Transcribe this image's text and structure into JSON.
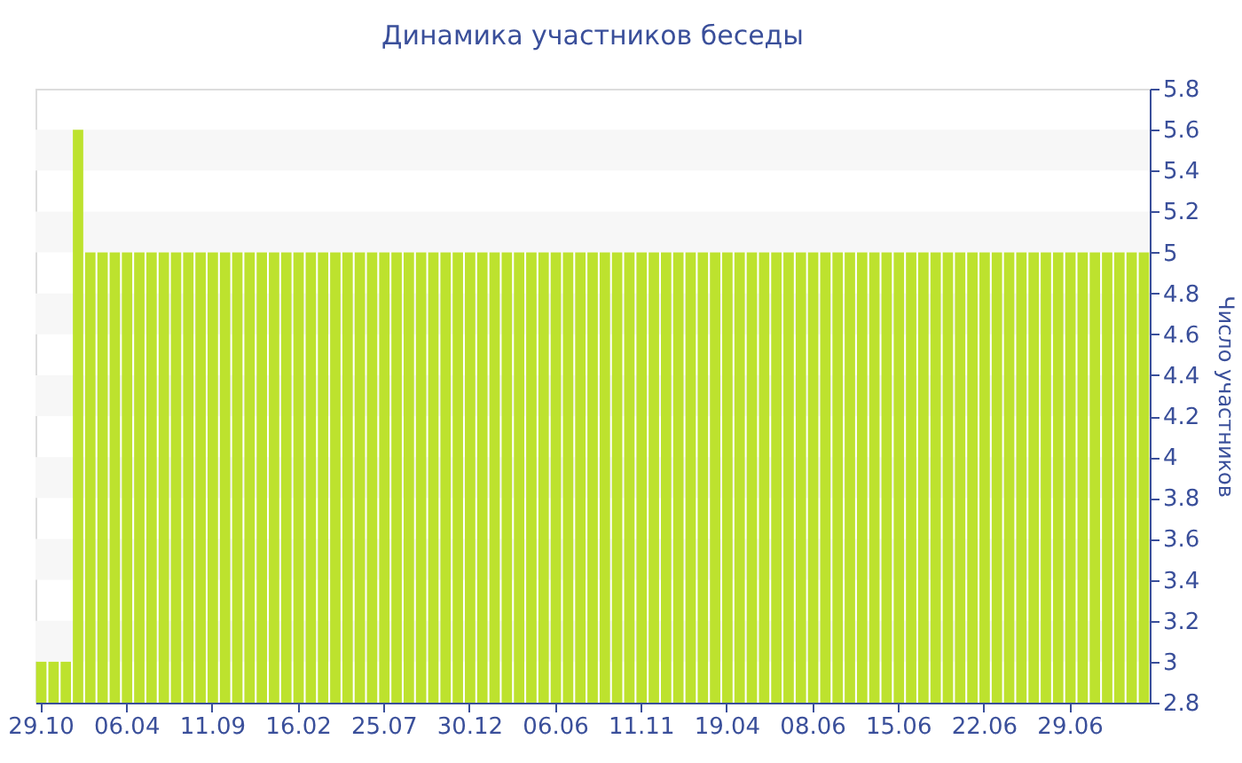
{
  "chart_data": {
    "type": "bar",
    "title": "Динамика участников беседы",
    "ylabel": "Число участников",
    "categories": [
      "29.10",
      null,
      null,
      null,
      null,
      null,
      null,
      "06.04",
      null,
      null,
      null,
      null,
      null,
      null,
      "11.09",
      null,
      null,
      null,
      null,
      null,
      null,
      "16.02",
      null,
      null,
      null,
      null,
      null,
      null,
      "25.07",
      null,
      null,
      null,
      null,
      null,
      null,
      "30.12",
      null,
      null,
      null,
      null,
      null,
      null,
      "06.06",
      null,
      null,
      null,
      null,
      null,
      null,
      "11.11",
      null,
      null,
      null,
      null,
      null,
      null,
      "19.04",
      null,
      null,
      null,
      null,
      null,
      null,
      "08.06",
      null,
      null,
      null,
      null,
      null,
      null,
      "15.06",
      null,
      null,
      null,
      null,
      null,
      null,
      "22.06",
      null,
      null,
      null,
      null,
      null,
      null,
      "29.06",
      null,
      null,
      null,
      null,
      null,
      null
    ],
    "values": [
      3,
      3,
      3,
      5.6,
      5,
      5,
      5,
      5,
      5,
      5,
      5,
      5,
      5,
      5,
      5,
      5,
      5,
      5,
      5,
      5,
      5,
      5,
      5,
      5,
      5,
      5,
      5,
      5,
      5,
      5,
      5,
      5,
      5,
      5,
      5,
      5,
      5,
      5,
      5,
      5,
      5,
      5,
      5,
      5,
      5,
      5,
      5,
      5,
      5,
      5,
      5,
      5,
      5,
      5,
      5,
      5,
      5,
      5,
      5,
      5,
      5,
      5,
      5,
      5,
      5,
      5,
      5,
      5,
      5,
      5,
      5,
      5,
      5,
      5,
      5,
      5,
      5,
      5,
      5,
      5,
      5,
      5,
      5,
      5,
      5,
      5,
      5,
      5,
      5,
      5,
      5
    ],
    "color": "#bde22e",
    "ylim": [
      2.8,
      5.8
    ],
    "yticks": [
      2.8,
      3,
      3.2,
      3.4,
      3.6,
      3.8,
      4,
      4.2,
      4.4,
      4.6,
      4.8,
      5,
      5.2,
      5.4,
      5.6,
      5.8
    ],
    "bands": [
      {
        "axis": "y",
        "from": 3,
        "to": 3.2,
        "color": "#f7f7f7"
      },
      {
        "axis": "y",
        "from": 3.4,
        "to": 3.6,
        "color": "#f7f7f7"
      },
      {
        "axis": "y",
        "from": 3.8,
        "to": 4,
        "color": "#f7f7f7"
      },
      {
        "axis": "y",
        "from": 4.2,
        "to": 4.4,
        "color": "#f7f7f7"
      },
      {
        "axis": "y",
        "from": 4.6,
        "to": 4.8,
        "color": "#f7f7f7"
      },
      {
        "axis": "y",
        "from": 5,
        "to": 5.2,
        "color": "#f7f7f7"
      },
      {
        "axis": "y",
        "from": 5.4,
        "to": 5.6,
        "color": "#f7f7f7"
      }
    ]
  }
}
